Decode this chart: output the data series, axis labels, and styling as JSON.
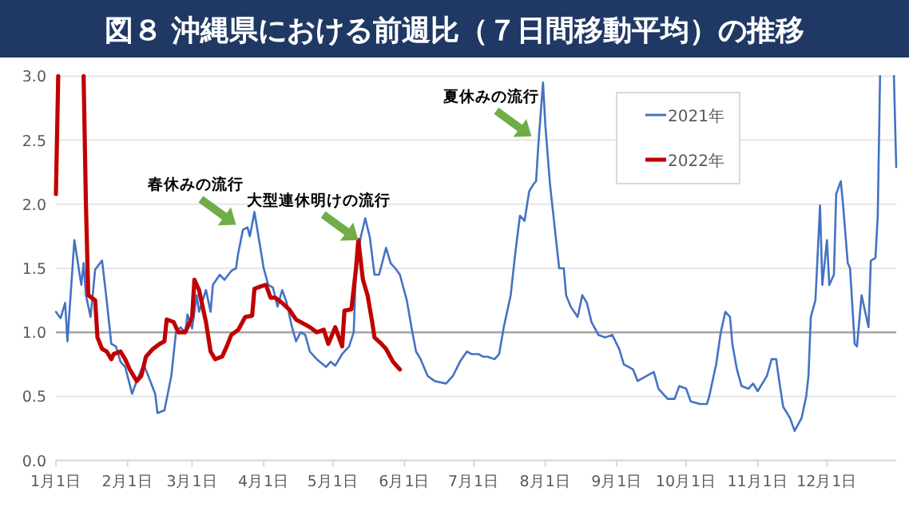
{
  "chart_data": {
    "type": "line",
    "title": "図８ 沖縄県における前週比（７日間移動平均）の推移",
    "xlim": [
      "--01-01",
      "--12-31"
    ],
    "xticks": [
      {
        "value": "--01-01",
        "label": "1月1日"
      },
      {
        "value": "--02-01",
        "label": "2月1日"
      },
      {
        "value": "--03-01",
        "label": "3月1日"
      },
      {
        "value": "--04-01",
        "label": "4月1日"
      },
      {
        "value": "--05-01",
        "label": "5月1日"
      },
      {
        "value": "--06-01",
        "label": "6月1日"
      },
      {
        "value": "--07-01",
        "label": "7月1日"
      },
      {
        "value": "--08-01",
        "label": "8月1日"
      },
      {
        "value": "--09-01",
        "label": "9月1日"
      },
      {
        "value": "--10-01",
        "label": "10月1日"
      },
      {
        "value": "--11-01",
        "label": "11月1日"
      },
      {
        "value": "--12-01",
        "label": "12月1日"
      }
    ],
    "ylim": [
      0,
      3
    ],
    "yticks": [
      {
        "value": 0,
        "label": "0.0"
      },
      0.5,
      {
        "value": 1,
        "label": "1.0"
      },
      1.5,
      {
        "value": 2,
        "label": "2.0"
      },
      2.5,
      {
        "value": 3,
        "label": "3.0"
      }
    ],
    "grid": "y",
    "legend": "top right",
    "line_style": "solid",
    "marker": "none",
    "ref_lines": [
      {
        "axis": "y",
        "value": 1,
        "color": "#a6a6a6"
      }
    ],
    "annotations": [
      {
        "text": "春休みの流行",
        "x": "--03-20",
        "y": 1.84
      },
      {
        "text": "大型連休明けの流行",
        "x": "--05-12",
        "y": 1.72
      },
      {
        "text": "夏休みの流行",
        "x": "--07-26",
        "y": 2.53
      }
    ],
    "series": [
      {
        "name": "2021年",
        "color": "#4472c4",
        "x": [
          "--01-01",
          "--01-03",
          "--01-05",
          "--01-06",
          "--01-09",
          "--01-12",
          "--01-13",
          "--01-14",
          "--01-16",
          "--01-18",
          "--01-21",
          "--01-23",
          "--01-25",
          "--01-27",
          "--01-29",
          "--01-31",
          "--02-01",
          "--02-03",
          "--02-05",
          "--02-08",
          "--02-10",
          "--02-13",
          "--02-14",
          "--02-17",
          "--02-20",
          "--02-22",
          "--02-24",
          "--02-26",
          "--02-27",
          "--03-01",
          "--03-03",
          "--03-04",
          "--03-07",
          "--03-09",
          "--03-10",
          "--03-13",
          "--03-15",
          "--03-18",
          "--03-20",
          "--03-21",
          "--03-23",
          "--03-25",
          "--03-26",
          "--03-28",
          "--03-30",
          "--04-01",
          "--04-03",
          "--04-05",
          "--04-07",
          "--04-09",
          "--04-11",
          "--04-13",
          "--04-15",
          "--04-17",
          "--04-19",
          "--04-21",
          "--04-24",
          "--04-28",
          "--04-30",
          "--05-02",
          "--05-05",
          "--05-08",
          "--05-10",
          "--05-11",
          "--05-13",
          "--05-15",
          "--05-17",
          "--05-19",
          "--05-21",
          "--05-22",
          "--05-24",
          "--05-26",
          "--05-28",
          "--05-30",
          "--06-02",
          "--06-04",
          "--06-06",
          "--06-08",
          "--06-11",
          "--06-14",
          "--06-19",
          "--06-22",
          "--06-25",
          "--06-28",
          "--06-30",
          "--07-03",
          "--07-05",
          "--07-07",
          "--07-10",
          "--07-12",
          "--07-14",
          "--07-17",
          "--07-19",
          "--07-21",
          "--07-23",
          "--07-25",
          "--07-27",
          "--07-28",
          "--07-29",
          "--07-31",
          "--08-01",
          "--08-03",
          "--08-05",
          "--08-07",
          "--08-09",
          "--08-10",
          "--08-12",
          "--08-15",
          "--08-17",
          "--08-19",
          "--08-21",
          "--08-24",
          "--08-27",
          "--08-30",
          "--09-02",
          "--09-04",
          "--09-08",
          "--09-10",
          "--09-14",
          "--09-17",
          "--09-19",
          "--09-23",
          "--09-26",
          "--09-28",
          "--10-01",
          "--10-03",
          "--10-07",
          "--10-10",
          "--10-11",
          "--10-14",
          "--10-16",
          "--10-18",
          "--10-20",
          "--10-21",
          "--10-23",
          "--10-25",
          "--10-28",
          "--10-30",
          "--11-01",
          "--11-03",
          "--11-05",
          "--11-07",
          "--11-09",
          "--11-10",
          "--11-12",
          "--11-15",
          "--11-17",
          "--11-20",
          "--11-22",
          "--11-23",
          "--11-24",
          "--11-26",
          "--11-28",
          "--11-29",
          "--12-01",
          "--12-02",
          "--12-04",
          "--12-05",
          "--12-07",
          "--12-08",
          "--12-10",
          "--12-11",
          "--12-13",
          "--12-14",
          "--12-16",
          "--12-19",
          "--12-20",
          "--12-22",
          "--12-23",
          "--12-24",
          "--12-25",
          "--12-30",
          "--12-31"
        ],
        "values": [
          1.16,
          1.11,
          1.23,
          0.93,
          1.72,
          1.37,
          1.54,
          1.29,
          1.12,
          1.49,
          1.56,
          1.25,
          0.91,
          0.89,
          0.77,
          0.73,
          0.66,
          0.52,
          0.62,
          0.75,
          0.66,
          0.52,
          0.37,
          0.39,
          0.66,
          1.0,
          1.04,
          1.0,
          1.14,
          1.03,
          1.29,
          1.16,
          1.33,
          1.16,
          1.37,
          1.45,
          1.41,
          1.48,
          1.5,
          1.62,
          1.8,
          1.82,
          1.75,
          1.94,
          1.72,
          1.5,
          1.37,
          1.35,
          1.2,
          1.33,
          1.23,
          1.06,
          0.93,
          1.0,
          0.98,
          0.85,
          0.79,
          0.73,
          0.77,
          0.74,
          0.83,
          0.89,
          1.0,
          1.5,
          1.74,
          1.89,
          1.74,
          1.45,
          1.45,
          1.52,
          1.66,
          1.54,
          1.5,
          1.45,
          1.25,
          1.04,
          0.85,
          0.79,
          0.66,
          0.62,
          0.6,
          0.66,
          0.77,
          0.85,
          0.83,
          0.83,
          0.81,
          0.81,
          0.79,
          0.83,
          1.04,
          1.29,
          1.62,
          1.91,
          1.87,
          2.1,
          2.16,
          2.18,
          2.47,
          2.95,
          2.62,
          2.16,
          1.83,
          1.5,
          1.5,
          1.29,
          1.2,
          1.12,
          1.29,
          1.23,
          1.08,
          0.98,
          0.96,
          0.98,
          0.87,
          0.75,
          0.71,
          0.62,
          0.66,
          0.69,
          0.56,
          0.48,
          0.48,
          0.58,
          0.56,
          0.46,
          0.44,
          0.44,
          0.5,
          0.75,
          1.0,
          1.16,
          1.12,
          0.91,
          0.71,
          0.58,
          0.56,
          0.6,
          0.54,
          0.6,
          0.66,
          0.79,
          0.79,
          0.66,
          0.42,
          0.33,
          0.23,
          0.33,
          0.5,
          0.66,
          1.12,
          1.25,
          1.99,
          1.37,
          1.72,
          1.37,
          1.45,
          2.08,
          2.18,
          1.99,
          1.54,
          1.5,
          0.91,
          0.89,
          1.29,
          1.04,
          1.56,
          1.58,
          1.91,
          3.0,
          null,
          3.0,
          2.29
        ]
      },
      {
        "name": "2022年",
        "color": "#c00000",
        "x": [
          "--01-01",
          "--01-02",
          "--01-07",
          "--01-13",
          "--01-14",
          "--01-15",
          "--01-18",
          "--01-19",
          "--01-21",
          "--01-23",
          "--01-25",
          "--01-26",
          "--01-29",
          "--01-31",
          "--02-02",
          "--02-05",
          "--02-07",
          "--02-09",
          "--02-12",
          "--02-15",
          "--02-17",
          "--02-18",
          "--02-21",
          "--02-23",
          "--02-26",
          "--03-01",
          "--03-02",
          "--03-04",
          "--03-07",
          "--03-09",
          "--03-11",
          "--03-14",
          "--03-16",
          "--03-18",
          "--03-21",
          "--03-24",
          "--03-27",
          "--03-28",
          "--03-31",
          "--04-02",
          "--04-04",
          "--04-06",
          "--04-09",
          "--04-12",
          "--04-15",
          "--04-19",
          "--04-21",
          "--04-24",
          "--04-27",
          "--04-29",
          "--05-02",
          "--05-05",
          "--05-06",
          "--05-09",
          "--05-11",
          "--05-12",
          "--05-14",
          "--05-16",
          "--05-18",
          "--05-19",
          "--05-22",
          "--05-24",
          "--05-27",
          "--05-30"
        ],
        "values": [
          2.08,
          3.0,
          null,
          3.0,
          2.0,
          1.29,
          1.25,
          0.96,
          0.87,
          0.85,
          0.79,
          0.83,
          0.85,
          0.79,
          0.71,
          0.62,
          0.66,
          0.81,
          0.87,
          0.91,
          0.93,
          1.1,
          1.08,
          1.0,
          1.0,
          1.12,
          1.41,
          1.33,
          1.08,
          0.85,
          0.79,
          0.81,
          0.89,
          0.98,
          1.02,
          1.12,
          1.13,
          1.34,
          1.36,
          1.37,
          1.27,
          1.27,
          1.23,
          1.18,
          1.1,
          1.06,
          1.04,
          1.0,
          1.02,
          0.91,
          1.04,
          0.89,
          1.17,
          1.18,
          1.5,
          1.72,
          1.41,
          1.29,
          1.08,
          0.96,
          0.91,
          0.87,
          0.77,
          0.71
        ]
      }
    ]
  }
}
